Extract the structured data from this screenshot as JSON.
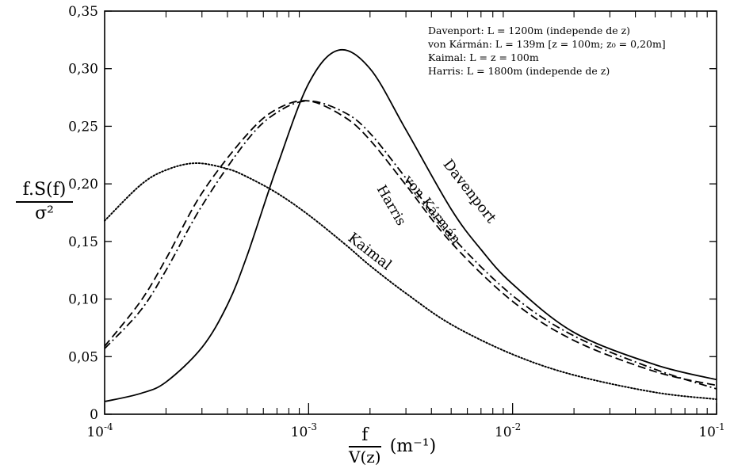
{
  "chart_data": {
    "type": "line",
    "x_scale": "log",
    "xlim": [
      0.0001,
      0.1
    ],
    "ylim": [
      0,
      0.35
    ],
    "xlabel": {
      "numerator": "f",
      "denominator": "V(z)",
      "unit": "(m⁻¹)"
    },
    "ylabel": {
      "numerator": "f.S(f)",
      "denominator": "σ²"
    },
    "y_ticks": [
      "0",
      "0,05",
      "0,10",
      "0,15",
      "0,20",
      "0,25",
      "0,30",
      "0,35"
    ],
    "x_tick_labels": [
      {
        "base": "10",
        "exp": "-4"
      },
      {
        "base": "10",
        "exp": "-3"
      },
      {
        "base": "10",
        "exp": "-2"
      },
      {
        "base": "10",
        "exp": "-1"
      }
    ],
    "legend_lines": [
      "Davenport: L = 1200m (independe de z)",
      "von Kármán: L = 139m [z = 100m; z₀ = 0,20m]",
      "Kaimal: L = z = 100m",
      "Harris: L = 1800m (independe de z)"
    ],
    "series": [
      {
        "name": "Davenport",
        "style": "solid",
        "x": [
          0.0001,
          0.00015,
          0.0002,
          0.0003,
          0.0004,
          0.0005,
          0.0007,
          0.001,
          0.0014,
          0.002,
          0.003,
          0.005,
          0.007,
          0.01,
          0.02,
          0.05,
          0.1
        ],
        "y": [
          0.011,
          0.018,
          0.028,
          0.058,
          0.095,
          0.138,
          0.215,
          0.287,
          0.316,
          0.3,
          0.247,
          0.178,
          0.143,
          0.113,
          0.071,
          0.043,
          0.03
        ]
      },
      {
        "name": "von Kármán",
        "style": "dash",
        "x": [
          0.0001,
          0.00015,
          0.0002,
          0.0003,
          0.0005,
          0.0007,
          0.001,
          0.0015,
          0.002,
          0.003,
          0.005,
          0.01,
          0.02,
          0.05,
          0.1
        ],
        "y": [
          0.059,
          0.098,
          0.135,
          0.192,
          0.243,
          0.265,
          0.272,
          0.258,
          0.238,
          0.199,
          0.149,
          0.098,
          0.064,
          0.037,
          0.025
        ]
      },
      {
        "name": "Harris",
        "style": "dashdot",
        "x": [
          0.0001,
          0.00015,
          0.0002,
          0.0003,
          0.0005,
          0.0007,
          0.001,
          0.0015,
          0.002,
          0.003,
          0.005,
          0.01,
          0.02,
          0.05,
          0.1
        ],
        "y": [
          0.057,
          0.09,
          0.125,
          0.181,
          0.238,
          0.262,
          0.272,
          0.262,
          0.244,
          0.205,
          0.155,
          0.103,
          0.068,
          0.039,
          0.022
        ]
      },
      {
        "name": "Kaimal",
        "style": "dot",
        "x": [
          0.0001,
          0.00015,
          0.0002,
          0.00028,
          0.0004,
          0.0005,
          0.0007,
          0.001,
          0.0015,
          0.002,
          0.003,
          0.005,
          0.01,
          0.02,
          0.05,
          0.1
        ],
        "y": [
          0.168,
          0.199,
          0.212,
          0.218,
          0.213,
          0.206,
          0.192,
          0.173,
          0.148,
          0.129,
          0.105,
          0.078,
          0.052,
          0.034,
          0.019,
          0.013
        ]
      }
    ],
    "curve_labels": [
      {
        "text": "Davenport",
        "series": "Davenport"
      },
      {
        "text": "von Kármán",
        "series": "von Kármán"
      },
      {
        "text": "Harris",
        "series": "Harris"
      },
      {
        "text": "Kaimal",
        "series": "Kaimal"
      }
    ]
  }
}
